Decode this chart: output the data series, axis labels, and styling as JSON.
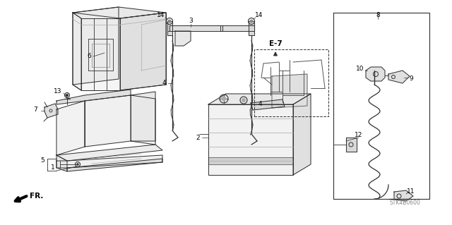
{
  "bg_color": "#ffffff",
  "lc": "#303030",
  "lc_light": "#888888",
  "title_text": "STK4B0600",
  "fr_label": "FR.",
  "e7_label": "E-7",
  "figsize": [
    6.4,
    3.19
  ],
  "dpi": 100
}
